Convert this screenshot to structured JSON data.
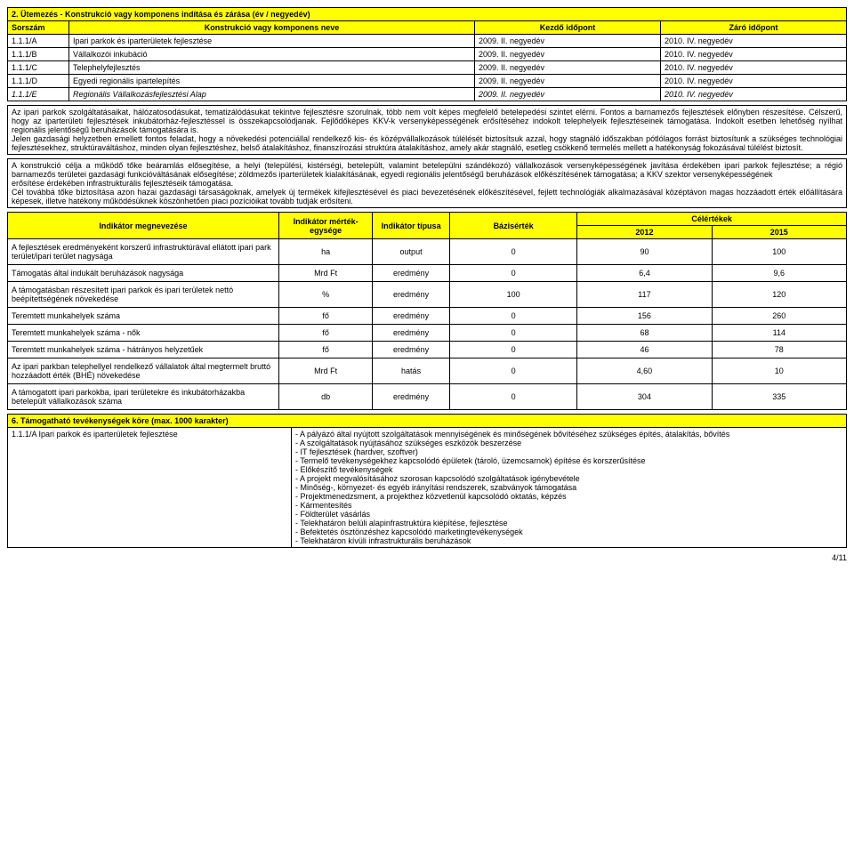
{
  "section2": {
    "title": "2. Ütemezés - Konstrukció vagy komponens indítása és zárása (év / negyedév)",
    "headers": [
      "Sorszám",
      "Konstrukció vagy komponens neve",
      "Kezdő időpont",
      "Záró időpont"
    ],
    "rows": [
      [
        "1.1.1/A",
        "Ipari parkok és iparterületek fejlesztése",
        "2009. II. negyedév",
        "2010. IV. negyedév"
      ],
      [
        "1.1.1/B",
        "Vállalkozói inkubáció",
        "2009. II. negyedév",
        "2010. IV. negyedév"
      ],
      [
        "1.1.1/C",
        "Telephelyfejlesztés",
        "2009. II. negyedév",
        "2010. IV. negyedév"
      ],
      [
        "1.1.1/D",
        "Egyedi regionális ipartelepítés",
        "2009. II. negyedév",
        "2010. IV. negyedév"
      ],
      [
        "1.1.1/E",
        "Regionális Vállalkozásfejlesztési Alap",
        "2009. II. negyedév",
        "2010. IV. negyedév"
      ]
    ]
  },
  "textblock1": "Az ipari parkok szolgáltatásaikat, hálózatosodásukat, tematizálódásukat tekintve fejlesztésre szorulnak, több nem volt képes megfelelő betelepedési szintet elérni. Fontos a barnamezős fejlesztések előnyben részesítése. Célszerű, hogy az iparterületi fejlesztések inkubátorház-fejlesztéssel is összekapcsolódjanak. Fejlődőképes KKV-k versenyképességének erősítéséhez indokolt telephelyeik fejlesztéseinek támogatása. Indokolt esetben lehetőség nyílhat regionális jelentőségű beruházások támogatására is.\nJelen gazdasági helyzetben emellett fontos feladat, hogy a növekedési potenciállal rendelkező kis- és középvállalkozások túlélését biztosítsuk azzal, hogy stagnáló időszakban pótlólagos forrást biztosítunk a szükséges technológiai fejlesztésekhez, struktúraváltáshoz, minden olyan fejlesztéshez, belső átalakításhoz, finanszírozási struktúra átalakításhoz, amely akár stagnáló, esetleg csökkenő termelés mellett a hatékonyság fokozásával túlélést biztosít.",
  "textblock2": "A konstrukció célja a működő tőke beáramlás elősegítése, a helyi (települési, kistérségi, betelepült, valamint betelepülni szándékozó) vállalkozások versenyképességének javítása érdekében ipari parkok fejlesztése; a régió barnamezős területei gazdasági funkcióváltásának elősegítése; zöldmezős iparterületek kialakításának, egyedi regionális jelentőségű beruházások előkészítésének támogatása; a KKV szektor versenyképességének\nerősítése érdekében infrastrukturális fejlesztéseik támogatása.\nCél továbbá tőke biztosítása azon hazai gazdasági társaságoknak, amelyek új termékek kifejlesztésével és piaci bevezetésének előkészítésével, fejlett technológiák alkalmazásával középtávon magas hozzáadott érték előállítására képesek, illetve hatékony működésüknek köszönhetően piaci pozícióikat tovább tudják erősíteni.",
  "indicators": {
    "headers": {
      "name": "Indikátor megnevezése",
      "unit": "Indikátor mérték-egysége",
      "type": "Indikátor típusa",
      "base": "Bázisérték",
      "target": "Célértékek",
      "y2012": "2012",
      "y2015": "2015"
    },
    "rows": [
      {
        "name": "A fejlesztések eredményeként korszerű infrastruktúrával ellátott ipari park terület/ipari terület nagysága",
        "unit": "ha",
        "type": "output",
        "base": "0",
        "v2012": "90",
        "v2015": "100"
      },
      {
        "name": "Támogatás által indukált beruházások nagysága",
        "unit": "Mrd Ft",
        "type": "eredmény",
        "base": "0",
        "v2012": "6,4",
        "v2015": "9,6"
      },
      {
        "name": "A támogatásban részesített ipari parkok és ipari területek nettó beépítettségének növekedése",
        "unit": "%",
        "type": "eredmény",
        "base": "100",
        "v2012": "117",
        "v2015": "120"
      },
      {
        "name": "Teremtett munkahelyek száma",
        "unit": "fő",
        "type": "eredmény",
        "base": "0",
        "v2012": "156",
        "v2015": "260"
      },
      {
        "name": "Teremtett munkahelyek száma - nők",
        "unit": "fő",
        "type": "eredmény",
        "base": "0",
        "v2012": "68",
        "v2015": "114"
      },
      {
        "name": "Teremtett munkahelyek száma - hátrányos helyzetűek",
        "unit": "fő",
        "type": "eredmény",
        "base": "0",
        "v2012": "46",
        "v2015": "78"
      },
      {
        "name": "Az ipari parkban telephellyel rendelkező vállalatok által megtermelt bruttó hozzáadott érték (BHÉ) növekedése",
        "unit": "Mrd Ft",
        "type": "hatás",
        "base": "0",
        "v2012": "4,60",
        "v2015": "10"
      },
      {
        "name": "A támogatott ipari parkokba, ipari területekre és inkubátorházakba betelepült vállalkozások száma",
        "unit": "db",
        "type": "eredmény",
        "base": "0",
        "v2012": "304",
        "v2015": "335"
      }
    ]
  },
  "section6": {
    "title": "6. Támogatható tevékenységek köre (max. 1000 karakter)",
    "row_label": "1.1.1/A Ipari parkok és iparterületek fejlesztése",
    "row_content": "- A pályázó által nyújtott szolgáltatások mennyiségének és minőségének bővítéséhez szükséges építés, átalakítás, bővítés\n- A szolgáltatások nyújtásához szükséges eszközök beszerzése\n- IT fejlesztések (hardver, szoftver)\n- Termelő tevékenységekhez kapcsolódó épületek (tároló, üzemcsarnok) építése és korszerűsítése\n- Előkészítő tevékenységek\n- A projekt megvalósításához szorosan kapcsolódó szolgáltatások igénybevétele\n- Minőség-, környezet- és egyéb irányítási rendszerek, szabványok támogatása\n- Projektmenedzsment, a projekthez közvetlenül kapcsolódó oktatás, képzés\n- Kármentesítés\n- Földterület vásárlás\n- Telekhatáron belüli alapinfrastruktúra kiépítése, fejlesztése\n- Befektetés ösztönzéshez kapcsolódó marketingtevékenységek\n- Telekhatáron kívüli infrastrukturális beruházások"
  },
  "footer": "4/11"
}
